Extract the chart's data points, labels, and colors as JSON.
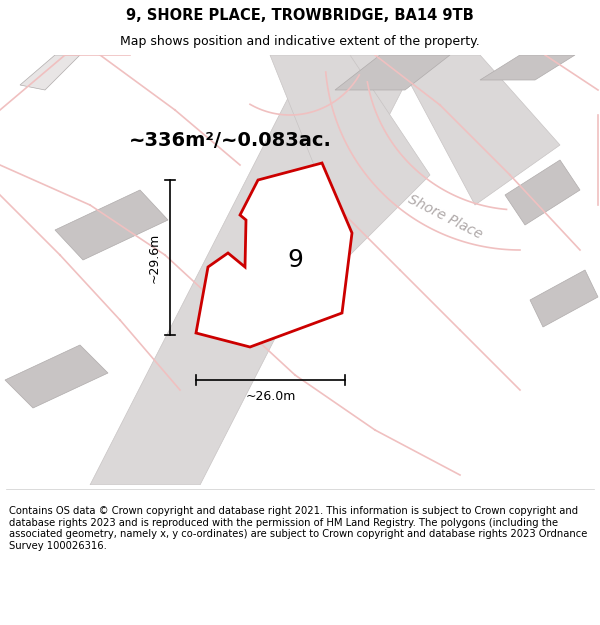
{
  "title_line1": "9, SHORE PLACE, TROWBRIDGE, BA14 9TB",
  "title_line2": "Map shows position and indicative extent of the property.",
  "area_text": "~336m²/~0.083ac.",
  "street_label": "Shore Place",
  "plot_number": "9",
  "dim_width": "~26.0m",
  "dim_height": "~29.6m",
  "footer_text": "Contains OS data © Crown copyright and database right 2021. This information is subject to Crown copyright and database rights 2023 and is reproduced with the permission of HM Land Registry. The polygons (including the associated geometry, namely x, y co-ordinates) are subject to Crown copyright and database rights 2023 Ordnance Survey 100026316.",
  "bg_color": "#f5f3f3",
  "map_bg": "#ffffff",
  "plot_fill": "#ffffff",
  "road_fill": "#dbd8d8",
  "highlight_color": "#cc0000",
  "light_pink": "#f0c0c0",
  "building_fill": "#c8c4c4",
  "building_edge": "#b0acac",
  "title_fontsize": 10.5,
  "subtitle_fontsize": 9,
  "footer_fontsize": 7.2,
  "area_fontsize": 14,
  "street_fontsize": 10,
  "number_fontsize": 18,
  "dim_fontsize": 9
}
